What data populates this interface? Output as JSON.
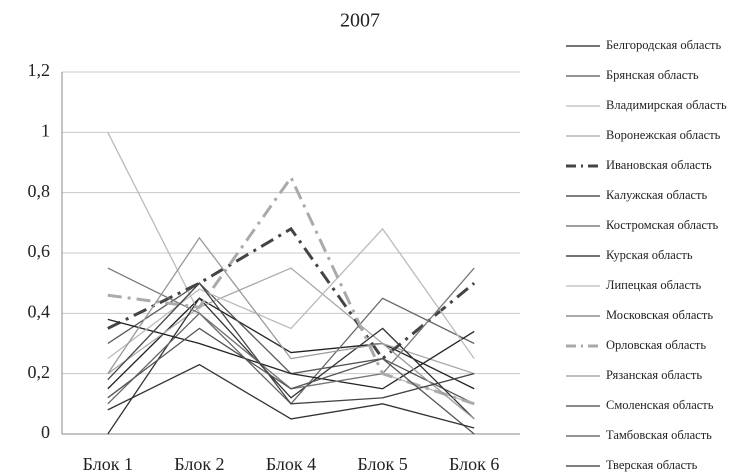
{
  "chart_data": {
    "type": "line",
    "title": "2007",
    "categories": [
      "Блок 1",
      "Блок 2",
      "Блок 4",
      "Блок 5",
      "Блок 6"
    ],
    "ylim": [
      0,
      1.2
    ],
    "yticks": [
      0,
      {
        "value": 0.2,
        "label": "0,2"
      },
      {
        "value": 0.4,
        "label": "0,4"
      },
      {
        "value": 0.6,
        "label": "0,6"
      },
      {
        "value": 0.8,
        "label": "0,8"
      },
      1,
      {
        "value": 1.2,
        "label": "1,2"
      }
    ],
    "grid": true,
    "legend": "right",
    "series": [
      {
        "name": "Белгородская область",
        "color": "#222222",
        "dash": "solid",
        "values": [
          0.15,
          0.45,
          0.27,
          0.3,
          0.15
        ]
      },
      {
        "name": "Брянская область",
        "color": "#555555",
        "dash": "solid",
        "values": [
          0.3,
          0.5,
          0.2,
          0.25,
          0.1
        ]
      },
      {
        "name": "Владимирская область",
        "color": "#bbbbbb",
        "dash": "solid",
        "values": [
          1,
          0.4,
          0.15,
          0.2,
          0.1
        ]
      },
      {
        "name": "Воронежская область",
        "color": "#aaaaaa",
        "dash": "solid",
        "values": [
          0.2,
          0.42,
          0.55,
          0.3,
          0.2
        ]
      },
      {
        "name": "Ивановская область",
        "color": "#444444",
        "dash": "dashdot",
        "values": [
          0.35,
          0.5,
          0.68,
          0.25,
          0.5
        ]
      },
      {
        "name": "Калужская область",
        "color": "#333333",
        "dash": "solid",
        "values": [
          0,
          0.45,
          0.12,
          0.35,
          0.05
        ]
      },
      {
        "name": "Костромская область",
        "color": "#666666",
        "dash": "solid",
        "values": [
          0.1,
          0.4,
          0.1,
          0.45,
          0.3
        ]
      },
      {
        "name": "Курская область",
        "color": "#222222",
        "dash": "solid",
        "values": [
          0.38,
          0.3,
          0.2,
          0.15,
          0.34
        ]
      },
      {
        "name": "Липецкая область",
        "color": "#bbbbbb",
        "dash": "solid",
        "values": [
          0.25,
          0.48,
          0.35,
          0.68,
          0.25
        ]
      },
      {
        "name": "Московская область",
        "color": "#777777",
        "dash": "solid",
        "values": [
          0.55,
          0.4,
          0.15,
          0.2,
          0.55
        ]
      },
      {
        "name": "Орловская область",
        "color": "#aaaaaa",
        "dash": "dashdot",
        "values": [
          0.46,
          0.42,
          0.85,
          0.2,
          0.1
        ]
      },
      {
        "name": "Рязанская область",
        "color": "#999999",
        "dash": "solid",
        "values": [
          0.2,
          0.65,
          0.25,
          0.3,
          0.05
        ]
      },
      {
        "name": "Смоленская область",
        "color": "#444444",
        "dash": "solid",
        "values": [
          0.18,
          0.5,
          0.1,
          0.12,
          0.2
        ]
      },
      {
        "name": "Тамбовская область",
        "color": "#555555",
        "dash": "solid",
        "values": [
          0.12,
          0.35,
          0.15,
          0.25,
          0
        ]
      },
      {
        "name": "Тверская область",
        "color": "#333333",
        "dash": "solid",
        "values": [
          0.08,
          0.23,
          0.05,
          0.1,
          0.02
        ]
      }
    ]
  }
}
